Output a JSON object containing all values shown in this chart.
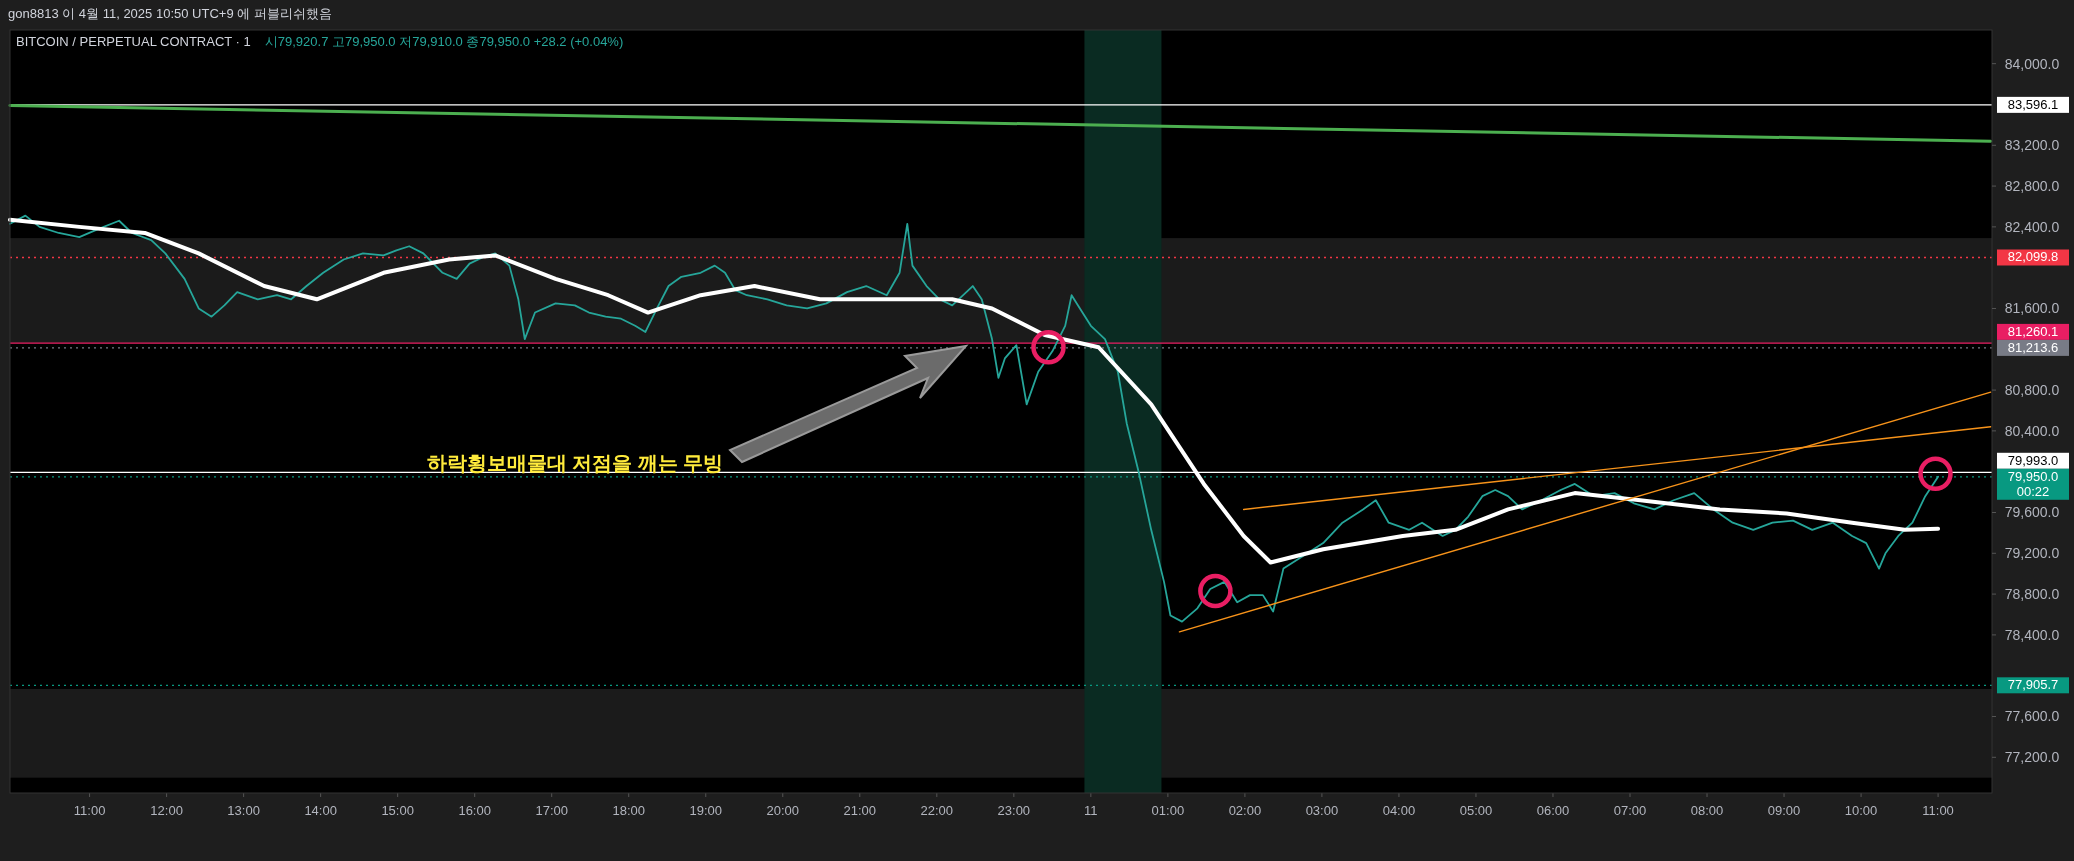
{
  "chart_data": {
    "type": "line",
    "title": "BITCOIN / PERPETUAL CONTRACT · 1",
    "annotations": [
      "gon8813 이 4월 11, 2025 10:50 UTC+9 에 퍼블리쉬했음",
      "시79,920.7  고79,950.0  저79,910.0  종79,950.0  +28.2 (+0.04%)",
      "하락횡보매물대 저점을 깨는 무빙"
    ],
    "xlim": [
      "2025-04-10T09:58",
      "2025-04-11T11:42"
    ],
    "ylim": [
      76850,
      84330
    ],
    "xticks": [
      {
        "value": "2025-04-10T11:00",
        "label": "11:00"
      },
      {
        "value": "2025-04-10T12:00",
        "label": "12:00"
      },
      {
        "value": "2025-04-10T13:00",
        "label": "13:00"
      },
      {
        "value": "2025-04-10T14:00",
        "label": "14:00"
      },
      {
        "value": "2025-04-10T15:00",
        "label": "15:00"
      },
      {
        "value": "2025-04-10T16:00",
        "label": "16:00"
      },
      {
        "value": "2025-04-10T17:00",
        "label": "17:00"
      },
      {
        "value": "2025-04-10T18:00",
        "label": "18:00"
      },
      {
        "value": "2025-04-10T19:00",
        "label": "19:00"
      },
      {
        "value": "2025-04-10T20:00",
        "label": "20:00"
      },
      {
        "value": "2025-04-10T21:00",
        "label": "21:00"
      },
      {
        "value": "2025-04-10T22:00",
        "label": "22:00"
      },
      {
        "value": "2025-04-10T23:00",
        "label": "23:00"
      },
      {
        "value": "2025-04-11T00:00",
        "label": "11"
      },
      {
        "value": "2025-04-11T01:00",
        "label": "01:00"
      },
      {
        "value": "2025-04-11T02:00",
        "label": "02:00"
      },
      {
        "value": "2025-04-11T03:00",
        "label": "03:00"
      },
      {
        "value": "2025-04-11T04:00",
        "label": "04:00"
      },
      {
        "value": "2025-04-11T05:00",
        "label": "05:00"
      },
      {
        "value": "2025-04-11T06:00",
        "label": "06:00"
      },
      {
        "value": "2025-04-11T07:00",
        "label": "07:00"
      },
      {
        "value": "2025-04-11T08:00",
        "label": "08:00"
      },
      {
        "value": "2025-04-11T09:00",
        "label": "09:00"
      },
      {
        "value": "2025-04-11T10:00",
        "label": "10:00"
      },
      {
        "value": "2025-04-11T11:00",
        "label": "11:00"
      }
    ],
    "yticks": [
      {
        "value": 84000,
        "label": "84,000.0"
      },
      {
        "value": 83200,
        "label": "83,200.0"
      },
      {
        "value": 82800,
        "label": "82,800.0"
      },
      {
        "value": 82400,
        "label": "82,400.0"
      },
      {
        "value": 81600,
        "label": "81,600.0"
      },
      {
        "value": 80800,
        "label": "80,800.0"
      },
      {
        "value": 80400,
        "label": "80,400.0"
      },
      {
        "value": 79600,
        "label": "79,600.0"
      },
      {
        "value": 79200,
        "label": "79,200.0"
      },
      {
        "value": 78800,
        "label": "78,800.0"
      },
      {
        "value": 78400,
        "label": "78,400.0"
      },
      {
        "value": 77600,
        "label": "77,600.0"
      },
      {
        "value": 77200,
        "label": "77,200.0"
      }
    ],
    "bands": [
      {
        "axis": "y",
        "from": 81260,
        "to": 82290,
        "color": "#1b1b1b"
      },
      {
        "axis": "y",
        "from": 77000,
        "to": 77870,
        "color": "#1b1b1b"
      },
      {
        "axis": "x",
        "from": "2025-04-10T23:55",
        "to": "2025-04-11T00:55",
        "color": "#0a2b22"
      }
    ],
    "ref_lines": [
      {
        "axis": "y",
        "value": 83596.1,
        "label": "83,596.1",
        "color": "#ffffff",
        "line_style": "solid"
      },
      {
        "axis": "y",
        "value": 82099.8,
        "label": "82,099.8",
        "color": "#f23645",
        "line_style": "dotted"
      },
      {
        "axis": "y",
        "value": 81260.1,
        "label": "81,260.1",
        "color": "#e91e63",
        "line_style": "solid"
      },
      {
        "axis": "y",
        "value": 81213.6,
        "label": "81,213.6",
        "color": "#787b86",
        "line_style": "dotted"
      },
      {
        "axis": "y",
        "value": 79993.0,
        "label": "79,993.0",
        "color": "#ffffff",
        "line_style": "solid"
      },
      {
        "axis": "y",
        "value": 79950.0,
        "label": "79,950.0\n00:22",
        "color": "#089981",
        "line_style": "dotted"
      },
      {
        "axis": "y",
        "value": 77905.7,
        "label": "77,905.7",
        "color": "#089981",
        "line_style": "dotted"
      }
    ],
    "series": [
      {
        "type": "line",
        "color": "#26a69a",
        "x": [
          "2025-04-10T09:58",
          "2025-04-10T10:10",
          "2025-04-10T10:21",
          "2025-04-10T10:36",
          "2025-04-10T10:52",
          "2025-04-10T11:07",
          "2025-04-10T11:23",
          "2025-04-10T11:33",
          "2025-04-10T11:48",
          "2025-04-10T11:59",
          "2025-04-10T12:14",
          "2025-04-10T12:25",
          "2025-04-10T12:35",
          "2025-04-10T12:45",
          "2025-04-10T12:55",
          "2025-04-10T13:11",
          "2025-04-10T13:26",
          "2025-04-10T13:37",
          "2025-04-10T13:49",
          "2025-04-10T14:02",
          "2025-04-10T14:18",
          "2025-04-10T14:33",
          "2025-04-10T14:49",
          "2025-04-10T14:59",
          "2025-04-10T15:09",
          "2025-04-10T15:20",
          "2025-04-10T15:35",
          "2025-04-10T15:46",
          "2025-04-10T15:56",
          "2025-04-10T16:06",
          "2025-04-10T16:16",
          "2025-04-10T16:27",
          "2025-04-10T16:34",
          "2025-04-10T16:39",
          "2025-04-10T16:47",
          "2025-04-10T17:03",
          "2025-04-10T17:18",
          "2025-04-10T17:29",
          "2025-04-10T17:42",
          "2025-04-10T17:54",
          "2025-04-10T18:05",
          "2025-04-10T18:13",
          "2025-04-10T18:22",
          "2025-04-10T18:31",
          "2025-04-10T18:41",
          "2025-04-10T18:56",
          "2025-04-10T19:07",
          "2025-04-10T19:15",
          "2025-04-10T19:23",
          "2025-04-10T19:32",
          "2025-04-10T19:48",
          "2025-04-10T20:03",
          "2025-04-10T20:19",
          "2025-04-10T20:34",
          "2025-04-10T20:50",
          "2025-04-10T21:05",
          "2025-04-10T21:21",
          "2025-04-10T21:31",
          "2025-04-10T21:37",
          "2025-04-10T21:41",
          "2025-04-10T21:52",
          "2025-04-10T22:02",
          "2025-04-10T22:12",
          "2025-04-10T22:28",
          "2025-04-10T22:35",
          "2025-04-10T22:43",
          "2025-04-10T22:48",
          "2025-04-10T22:53",
          "2025-04-10T23:02",
          "2025-04-10T23:10",
          "2025-04-10T23:19",
          "2025-04-10T23:30",
          "2025-04-10T23:40",
          "2025-04-10T23:45",
          "2025-04-10T23:50",
          "2025-04-11T00:00",
          "2025-04-11T00:11",
          "2025-04-11T00:21",
          "2025-04-11T00:28",
          "2025-04-11T00:37",
          "2025-04-11T00:47",
          "2025-04-11T00:57",
          "2025-04-11T01:02",
          "2025-04-11T01:11",
          "2025-04-11T01:23",
          "2025-04-11T01:33",
          "2025-04-11T01:44",
          "2025-04-11T01:54",
          "2025-04-11T02:04",
          "2025-04-11T02:14",
          "2025-04-11T02:22",
          "2025-04-11T02:30",
          "2025-04-11T02:45",
          "2025-04-11T03:01",
          "2025-04-11T03:16",
          "2025-04-11T03:32",
          "2025-04-11T03:42",
          "2025-04-11T03:52",
          "2025-04-11T04:08",
          "2025-04-11T04:18",
          "2025-04-11T04:34",
          "2025-04-11T04:44",
          "2025-04-11T04:54",
          "2025-04-11T05:05",
          "2025-04-11T05:15",
          "2025-04-11T05:25",
          "2025-04-11T05:36",
          "2025-04-11T05:51",
          "2025-04-11T06:06",
          "2025-04-11T06:17",
          "2025-04-11T06:32",
          "2025-04-11T06:48",
          "2025-04-11T07:03",
          "2025-04-11T07:19",
          "2025-04-11T07:34",
          "2025-04-11T07:50",
          "2025-04-11T08:05",
          "2025-04-11T08:20",
          "2025-04-11T08:36",
          "2025-04-11T08:51",
          "2025-04-11T09:07",
          "2025-04-11T09:22",
          "2025-04-11T09:38",
          "2025-04-11T09:53",
          "2025-04-11T10:04",
          "2025-04-11T10:14",
          "2025-04-11T10:19",
          "2025-04-11T10:29",
          "2025-04-11T10:40",
          "2025-04-11T10:50",
          "2025-04-11T11:00"
        ],
        "values": [
          82430,
          82510,
          82400,
          82340,
          82300,
          82380,
          82460,
          82340,
          82270,
          82140,
          81890,
          81600,
          81520,
          81630,
          81760,
          81690,
          81730,
          81690,
          81820,
          81950,
          82080,
          82140,
          82120,
          82170,
          82210,
          82140,
          81950,
          81890,
          82040,
          82100,
          82140,
          82020,
          81690,
          81300,
          81560,
          81650,
          81630,
          81560,
          81520,
          81500,
          81430,
          81370,
          81600,
          81820,
          81910,
          81950,
          82020,
          81950,
          81780,
          81730,
          81690,
          81630,
          81600,
          81650,
          81760,
          81820,
          81730,
          81950,
          82430,
          82020,
          81820,
          81690,
          81630,
          81820,
          81690,
          81300,
          80920,
          81110,
          81240,
          80660,
          80980,
          81180,
          81430,
          81730,
          81630,
          81430,
          81300,
          80980,
          80470,
          80010,
          79430,
          78920,
          78590,
          78530,
          78660,
          78850,
          78920,
          78720,
          78790,
          78790,
          78630,
          79050,
          79170,
          79300,
          79500,
          79630,
          79720,
          79500,
          79430,
          79500,
          79370,
          79430,
          79560,
          79760,
          79820,
          79760,
          79630,
          79720,
          79820,
          79880,
          79760,
          79790,
          79690,
          79630,
          79720,
          79790,
          79630,
          79500,
          79430,
          79500,
          79520,
          79430,
          79500,
          79370,
          79300,
          79050,
          79200,
          79370,
          79500,
          79760,
          79950
        ]
      },
      {
        "type": "line",
        "color": "#ffffff",
        "x": [
          "2025-04-10T09:58",
          "2025-04-10T10:52",
          "2025-04-10T11:43",
          "2025-04-10T12:25",
          "2025-04-10T13:16",
          "2025-04-10T13:57",
          "2025-04-10T14:49",
          "2025-04-10T15:40",
          "2025-04-10T16:16",
          "2025-04-10T17:03",
          "2025-04-10T17:44",
          "2025-04-10T18:15",
          "2025-04-10T18:56",
          "2025-04-10T19:38",
          "2025-04-10T20:29",
          "2025-04-10T21:21",
          "2025-04-10T22:12",
          "2025-04-10T22:43",
          "2025-04-10T23:24",
          "2025-04-11T00:06",
          "2025-04-11T00:47",
          "2025-04-11T01:28",
          "2025-04-11T01:59",
          "2025-04-11T02:20",
          "2025-04-11T03:01",
          "2025-04-11T04:03",
          "2025-04-11T04:44",
          "2025-04-11T05:25",
          "2025-04-11T06:17",
          "2025-04-11T07:08",
          "2025-04-11T08:10",
          "2025-04-11T09:02",
          "2025-04-11T09:53",
          "2025-04-11T10:34",
          "2025-04-11T11:00"
        ],
        "values": [
          82470,
          82400,
          82340,
          82140,
          81820,
          81690,
          81950,
          82080,
          82120,
          81890,
          81730,
          81560,
          81730,
          81820,
          81690,
          81690,
          81690,
          81600,
          81340,
          81220,
          80660,
          79880,
          79370,
          79110,
          79240,
          79370,
          79430,
          79630,
          79790,
          79720,
          79630,
          79590,
          79500,
          79430,
          79440
        ]
      },
      {
        "type": "line",
        "color": "#4caf50",
        "x": [
          "2025-04-10T09:58",
          "2025-04-11T11:41"
        ],
        "values": [
          83590,
          83240
        ]
      },
      {
        "type": "line",
        "color": "#f7931a",
        "x": [
          "2025-04-11T01:09",
          "2025-04-11T11:41"
        ],
        "values": [
          78430,
          80780
        ]
      },
      {
        "type": "line",
        "color": "#f7931a",
        "x": [
          "2025-04-11T01:59",
          "2025-04-11T11:41"
        ],
        "values": [
          79630,
          80440
        ]
      },
      {
        "type": "scatter",
        "color": "#e91e63",
        "marker": "circle",
        "x": [
          "2025-04-10T23:27",
          "2025-04-11T01:37",
          "2025-04-11T10:58"
        ],
        "values": [
          81220,
          78830,
          79980
        ]
      }
    ],
    "line_style": "solid"
  }
}
